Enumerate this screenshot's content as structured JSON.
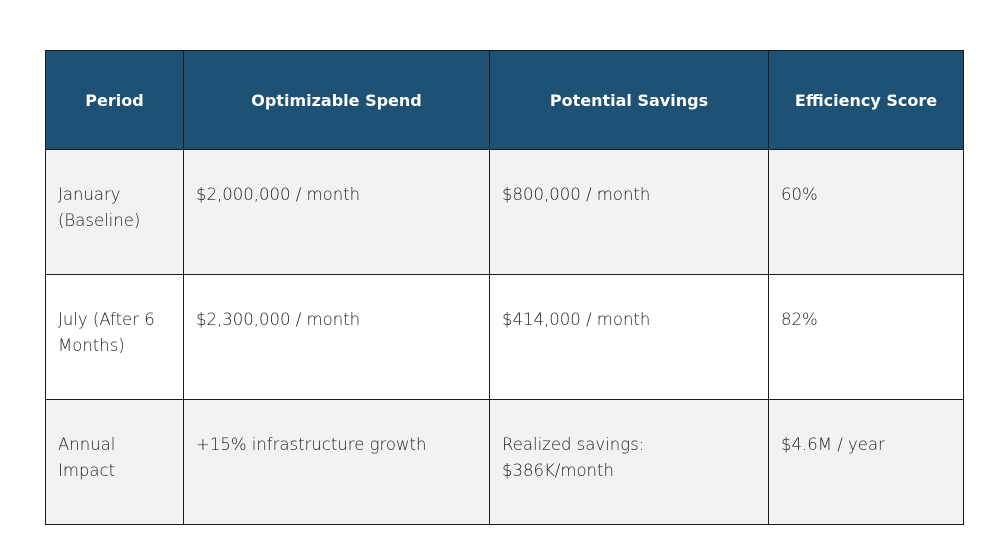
{
  "table": {
    "headers": [
      "Period",
      "Optimizable Spend",
      "Potential Savings",
      "Efficiency Score"
    ],
    "rows": [
      {
        "period": "January (Baseline)",
        "optimizable_spend": "$2,000,000 / month",
        "potential_savings": "$800,000 / month",
        "efficiency_score": "60%"
      },
      {
        "period": "July (After 6 Months)",
        "optimizable_spend": "$2,300,000 / month",
        "potential_savings": "$414,000 / month",
        "efficiency_score": "82%"
      },
      {
        "period": "Annual Impact",
        "optimizable_spend": "+15% infrastructure growth",
        "potential_savings": "Realized savings: $386K/month",
        "efficiency_score": "$4.6M / year"
      }
    ]
  },
  "colors": {
    "header_bg": "#1d5275",
    "header_text": "#ffffff",
    "alt_row_bg": "#f1f2f4",
    "border": "#1a1a1a"
  }
}
